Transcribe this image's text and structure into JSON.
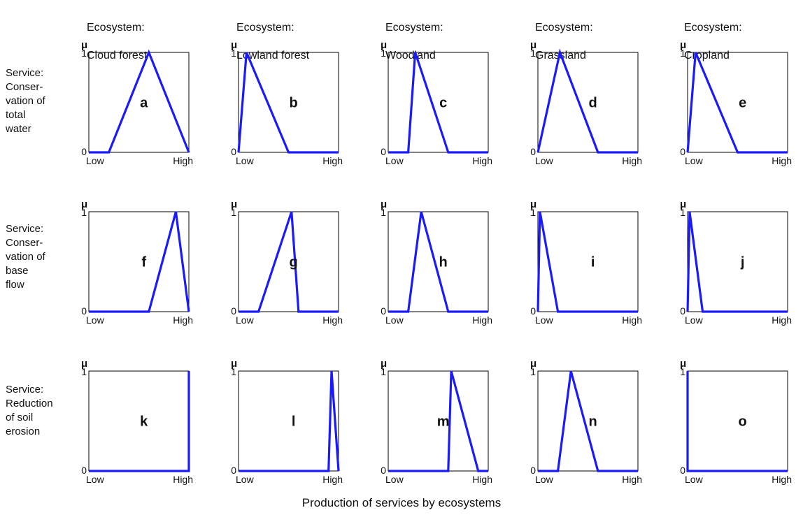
{
  "figure": {
    "xlabel": "Production of services by ecosystems",
    "columns": [
      {
        "line1": "Ecosystem:",
        "line2": "Cloud forest"
      },
      {
        "line1": "Ecosystem:",
        "line2": "Lowland forest"
      },
      {
        "line1": "Ecosystem:",
        "line2": "Woodland"
      },
      {
        "line1": "Ecosystem:",
        "line2": "Grassland"
      },
      {
        "line1": "Ecosystem:",
        "line2": "Cropland"
      }
    ],
    "rows": [
      {
        "label": "Service:\nConser-\nvation of\ntotal\nwater"
      },
      {
        "label": "Service:\nConser-\nvation of\nbase\nflow"
      },
      {
        "label": "Service:\nReduction\nof soil\nerosion"
      }
    ],
    "axis": {
      "y_symbol": "μ",
      "y_ticks": [
        "0",
        "1"
      ],
      "x_low": "Low",
      "x_high": "High"
    }
  },
  "chart_data": {
    "type": "line",
    "xlim": [
      0,
      1
    ],
    "ylim": [
      0,
      1
    ],
    "series_color": "#1a1aff",
    "panels": [
      {
        "label": "a",
        "x": [
          0,
          0.2,
          0.6,
          1.0
        ],
        "y": [
          0,
          0,
          1,
          0
        ]
      },
      {
        "label": "b",
        "x": [
          0,
          0.08,
          0.5,
          1.0
        ],
        "y": [
          0,
          1,
          0,
          0
        ]
      },
      {
        "label": "c",
        "x": [
          0,
          0.2,
          0.27,
          0.6,
          1.0
        ],
        "y": [
          0,
          0,
          1,
          0,
          0
        ]
      },
      {
        "label": "d",
        "x": [
          0,
          0.22,
          0.6,
          1.0
        ],
        "y": [
          0,
          1,
          0,
          0
        ]
      },
      {
        "label": "e",
        "x": [
          0,
          0.08,
          0.5,
          1.0
        ],
        "y": [
          0,
          1,
          0,
          0
        ]
      },
      {
        "label": "f",
        "x": [
          0,
          0.6,
          0.87,
          1.0
        ],
        "y": [
          0,
          0,
          1,
          0
        ]
      },
      {
        "label": "g",
        "x": [
          0,
          0.2,
          0.53,
          0.6,
          1.0
        ],
        "y": [
          0,
          0,
          1,
          0,
          0
        ]
      },
      {
        "label": "h",
        "x": [
          0,
          0.2,
          0.33,
          0.6,
          1.0
        ],
        "y": [
          0,
          0,
          1,
          0,
          0
        ]
      },
      {
        "label": "i",
        "x": [
          0,
          0,
          0.02,
          0.2,
          1.0
        ],
        "y": [
          0,
          0,
          1,
          0,
          0
        ]
      },
      {
        "label": "j",
        "x": [
          0,
          0,
          0.02,
          0.15,
          1.0
        ],
        "y": [
          0,
          0,
          1,
          0,
          0
        ]
      },
      {
        "label": "k",
        "x": [
          0,
          1.0,
          1.0
        ],
        "y": [
          0,
          0,
          1
        ]
      },
      {
        "label": "l",
        "x": [
          0,
          0.9,
          0.93,
          1.0
        ],
        "y": [
          0,
          0,
          1,
          0
        ]
      },
      {
        "label": "m",
        "x": [
          0,
          0.6,
          0.63,
          0.9,
          1.0
        ],
        "y": [
          0,
          0,
          1,
          0,
          0
        ]
      },
      {
        "label": "n",
        "x": [
          0,
          0.2,
          0.33,
          0.6,
          1.0
        ],
        "y": [
          0,
          0,
          1,
          0,
          0
        ]
      },
      {
        "label": "o",
        "x": [
          0,
          0,
          0,
          1.0
        ],
        "y": [
          1,
          0,
          0,
          0
        ]
      }
    ]
  }
}
